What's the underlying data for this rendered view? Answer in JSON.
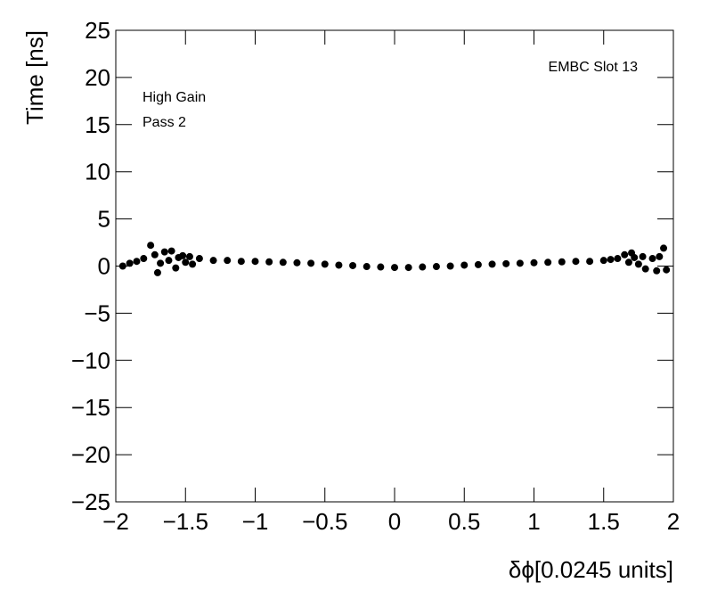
{
  "chart_data": {
    "type": "scatter",
    "y_label": "Time [ns]",
    "x_label": "δϕ[0.0245 units]",
    "annotations": [
      "EMBC Slot 13",
      "High Gain",
      "Pass 2"
    ],
    "color": "#000000",
    "x": [
      -1.95,
      -1.9,
      -1.85,
      -1.8,
      -1.75,
      -1.72,
      -1.7,
      -1.68,
      -1.65,
      -1.62,
      -1.6,
      -1.57,
      -1.55,
      -1.52,
      -1.5,
      -1.47,
      -1.45,
      -1.4,
      -1.3,
      -1.2,
      -1.1,
      -1.0,
      -0.9,
      -0.8,
      -0.7,
      -0.6,
      -0.5,
      -0.4,
      -0.3,
      -0.2,
      -0.1,
      0,
      0.1,
      0.2,
      0.3,
      0.4,
      0.5,
      0.6,
      0.7,
      0.8,
      0.9,
      1.0,
      1.1,
      1.2,
      1.3,
      1.4,
      1.5,
      1.55,
      1.6,
      1.65,
      1.68,
      1.7,
      1.72,
      1.75,
      1.78,
      1.8,
      1.85,
      1.88,
      1.9,
      1.93,
      1.95
    ],
    "values": [
      0.0,
      0.3,
      0.5,
      0.8,
      2.2,
      1.2,
      -0.7,
      0.3,
      1.5,
      0.6,
      1.6,
      -0.2,
      0.9,
      1.1,
      0.4,
      1.0,
      0.2,
      0.8,
      0.6,
      0.6,
      0.5,
      0.5,
      0.45,
      0.4,
      0.35,
      0.3,
      0.2,
      0.1,
      0.05,
      -0.05,
      -0.1,
      -0.15,
      -0.15,
      -0.1,
      -0.05,
      0,
      0.1,
      0.15,
      0.2,
      0.25,
      0.3,
      0.35,
      0.4,
      0.45,
      0.5,
      0.5,
      0.6,
      0.7,
      0.8,
      1.2,
      0.4,
      1.4,
      0.9,
      0.2,
      1.0,
      -0.3,
      0.8,
      -0.5,
      1.0,
      1.9,
      -0.4
    ],
    "xlim": [
      -2,
      2
    ],
    "xticks": [
      {
        "value": -2,
        "label": "−2"
      },
      {
        "value": -1.5,
        "label": "−1.5"
      },
      {
        "value": -1,
        "label": "−1"
      },
      {
        "value": -0.5,
        "label": "−0.5"
      },
      0,
      0.5,
      1,
      1.5,
      2
    ],
    "ylim": [
      -25,
      25
    ],
    "yticks": [
      {
        "value": -25,
        "label": "−25"
      },
      {
        "value": -20,
        "label": "−20"
      },
      {
        "value": -15,
        "label": "−15"
      },
      {
        "value": -10,
        "label": "−10"
      },
      {
        "value": -5,
        "label": "−5"
      },
      0,
      5,
      10,
      15,
      20,
      25
    ]
  }
}
